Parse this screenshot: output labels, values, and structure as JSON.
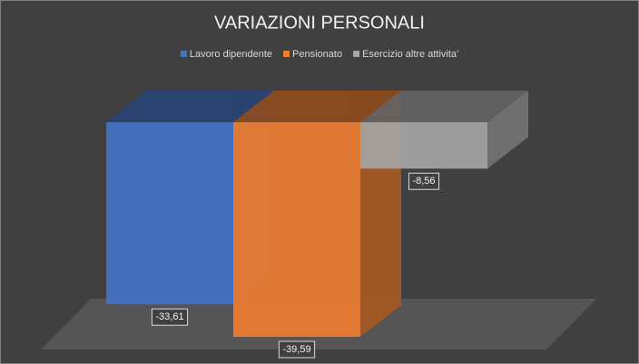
{
  "chart_data": {
    "type": "bar",
    "title": "VARIAZIONI PERSONALI",
    "categories": [
      null
    ],
    "series": [
      {
        "name": "Lavoro dipendente",
        "color": "#4472c4",
        "values": [
          -33.61
        ],
        "value_labels": [
          "-33,61"
        ]
      },
      {
        "name": "Pensionato",
        "color": "#ed7d31",
        "values": [
          -39.59
        ],
        "value_labels": [
          "-39,59"
        ]
      },
      {
        "name": "Esercizio altre attivita'",
        "color": "#a5a5a5",
        "values": [
          -8.56
        ],
        "value_labels": [
          "-8,56"
        ]
      }
    ],
    "legend": "top"
  }
}
